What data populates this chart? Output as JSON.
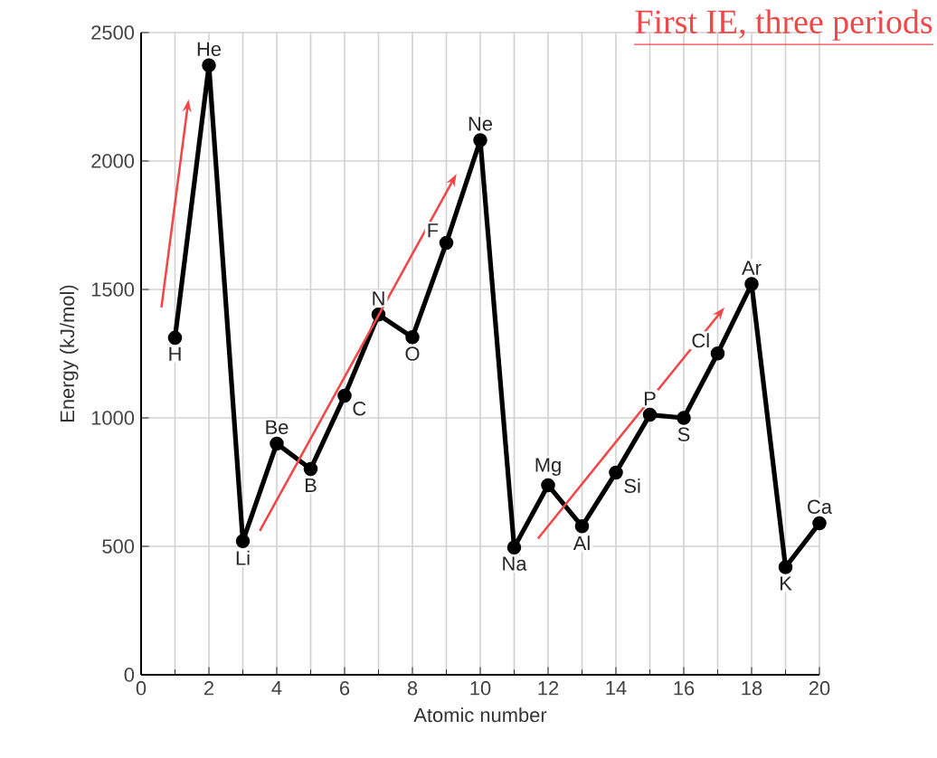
{
  "chart_data": {
    "type": "line",
    "title": "First IE, three periods",
    "xlabel": "Atomic number",
    "ylabel": "Energy (kJ/mol)",
    "x": [
      1,
      2,
      3,
      4,
      5,
      6,
      7,
      8,
      9,
      10,
      11,
      12,
      13,
      14,
      15,
      16,
      17,
      18,
      19,
      20
    ],
    "series": [
      {
        "color": "#000000",
        "values": [
          1312,
          2372,
          520,
          900,
          801,
          1086,
          1402,
          1314,
          1681,
          2081,
          496,
          738,
          578,
          787,
          1012,
          1000,
          1251,
          1521,
          419,
          590
        ]
      }
    ],
    "xlim": [
      0,
      20
    ],
    "xticks": [
      0,
      2,
      4,
      6,
      8,
      10,
      12,
      14,
      16,
      18,
      20
    ],
    "ylim": [
      0,
      2500
    ],
    "yticks": [
      0,
      500,
      1000,
      1500,
      2000,
      2500
    ],
    "grid": true,
    "marker": "circle",
    "line_style": "solid",
    "annotations": [
      {
        "text": "H",
        "x": 1,
        "y": 1312
      },
      {
        "text": "He",
        "x": 2,
        "y": 2372
      },
      {
        "text": "Li",
        "x": 3,
        "y": 520
      },
      {
        "text": "Be",
        "x": 4,
        "y": 900
      },
      {
        "text": "B",
        "x": 5,
        "y": 801
      },
      {
        "text": "C",
        "x": 6,
        "y": 1086
      },
      {
        "text": "N",
        "x": 7,
        "y": 1402
      },
      {
        "text": "O",
        "x": 8,
        "y": 1314
      },
      {
        "text": "F",
        "x": 9,
        "y": 1681
      },
      {
        "text": "Ne",
        "x": 10,
        "y": 2081
      },
      {
        "text": "Na",
        "x": 11,
        "y": 496
      },
      {
        "text": "Mg",
        "x": 12,
        "y": 738
      },
      {
        "text": "Al",
        "x": 13,
        "y": 578
      },
      {
        "text": "Si",
        "x": 14,
        "y": 787
      },
      {
        "text": "P",
        "x": 15,
        "y": 1012
      },
      {
        "text": "S",
        "x": 16,
        "y": 1000
      },
      {
        "text": "Cl",
        "x": 17,
        "y": 1251
      },
      {
        "text": "Ar",
        "x": 18,
        "y": 1521
      },
      {
        "text": "K",
        "x": 19,
        "y": 419
      },
      {
        "text": "Ca",
        "x": 20,
        "y": 590
      }
    ]
  }
}
